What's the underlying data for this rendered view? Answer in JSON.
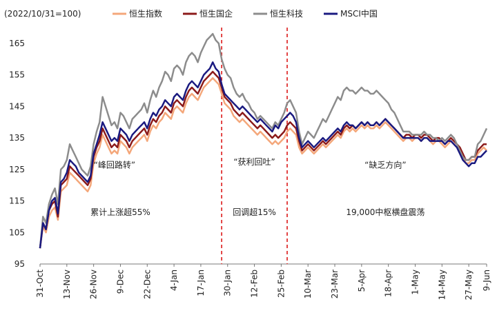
{
  "chart_data": {
    "type": "line",
    "unit_label": "(2022/10/31=100)",
    "ylim": [
      95,
      170
    ],
    "yticks": [
      95,
      105,
      115,
      125,
      135,
      145,
      155,
      165
    ],
    "xlim": [
      0,
      150
    ],
    "x_tick_labels": [
      "31-Oct",
      "13-Nov",
      "26-Nov",
      "9-Dec",
      "22-Dec",
      "4-Jan",
      "17-Jan",
      "30-Jan",
      "12-Feb",
      "25-Feb",
      "10-Mar",
      "23-Mar",
      "5-Apr",
      "18-Apr",
      "1-May",
      "14-May",
      "27-May",
      "9-Jun"
    ],
    "x_tick_pos": [
      0,
      9,
      18,
      27,
      36,
      45,
      54,
      63,
      72,
      81,
      90,
      99,
      108,
      117,
      126,
      135,
      144,
      150
    ],
    "vlines": [
      {
        "x": 61,
        "color": "#E03030"
      },
      {
        "x": 83,
        "color": "#E03030"
      }
    ],
    "annotations": [
      {
        "text": "“峰回路转”",
        "x": 25,
        "y": 125.5
      },
      {
        "text": "累计上涨超55%",
        "x": 27,
        "y": 110.5
      },
      {
        "text": "“获利回吐”",
        "x": 72,
        "y": 126.5
      },
      {
        "text": "回调超15%",
        "x": 72,
        "y": 110.5
      },
      {
        "text": "“缺乏方向”",
        "x": 116,
        "y": 125.5
      },
      {
        "text": "19,000中枢横盘震荡",
        "x": 116,
        "y": 110.5
      }
    ],
    "series": [
      {
        "name": "恒生指数",
        "color": "#F4A77A",
        "width": 2.5,
        "x": [
          0,
          1,
          2,
          3,
          4,
          5,
          6,
          7,
          8,
          9,
          10,
          11,
          12,
          13,
          14,
          15,
          16,
          17,
          18,
          19,
          20,
          21,
          22,
          23,
          24,
          25,
          26,
          27,
          28,
          29,
          30,
          31,
          32,
          33,
          34,
          35,
          36,
          37,
          38,
          39,
          40,
          41,
          42,
          43,
          44,
          45,
          46,
          47,
          48,
          49,
          50,
          51,
          52,
          53,
          54,
          55,
          56,
          57,
          58,
          59,
          60,
          61,
          62,
          63,
          64,
          65,
          66,
          67,
          68,
          69,
          70,
          71,
          72,
          73,
          74,
          75,
          76,
          77,
          78,
          79,
          80,
          81,
          82,
          83,
          84,
          85,
          86,
          87,
          88,
          89,
          90,
          91,
          92,
          93,
          94,
          95,
          96,
          97,
          98,
          99,
          100,
          101,
          102,
          103,
          104,
          105,
          106,
          107,
          108,
          109,
          110,
          111,
          112,
          113,
          114,
          115,
          116,
          117,
          118,
          119,
          120,
          121,
          122,
          123,
          124,
          125,
          126,
          127,
          128,
          129,
          130,
          131,
          132,
          133,
          134,
          135,
          136,
          137,
          138,
          139,
          140,
          141,
          142,
          143,
          144,
          145,
          146,
          147,
          148,
          149,
          150
        ],
        "y": [
          100,
          107,
          105,
          110,
          112,
          113,
          109,
          118,
          119,
          120,
          124,
          123,
          122,
          121,
          120,
          119,
          118,
          120,
          127,
          130,
          132,
          136,
          134,
          132,
          130,
          131,
          130,
          134,
          133,
          132,
          130,
          132,
          133,
          134,
          135,
          136,
          134,
          137,
          139,
          138,
          140,
          141,
          143,
          142,
          141,
          144,
          145,
          144,
          143,
          146,
          148,
          149,
          148,
          147,
          149,
          151,
          152,
          153,
          154,
          153,
          152,
          149,
          146,
          145,
          144,
          142,
          141,
          140,
          141,
          140,
          139,
          138,
          137,
          136,
          137,
          136,
          135,
          134,
          133,
          134,
          133,
          134,
          135,
          137,
          138,
          137,
          136,
          132,
          130,
          131,
          132,
          131,
          130,
          131,
          132,
          133,
          132,
          133,
          134,
          135,
          136,
          135,
          137,
          138,
          137,
          138,
          137,
          138,
          139,
          138,
          139,
          138,
          138,
          139,
          138,
          139,
          140,
          139,
          138,
          137,
          136,
          135,
          134,
          135,
          135,
          134,
          135,
          135,
          134,
          135,
          135,
          134,
          133,
          134,
          134,
          133,
          132,
          133,
          134,
          133,
          132,
          131,
          129,
          127,
          127,
          128,
          128,
          130,
          131,
          132,
          131
        ]
      },
      {
        "name": "恒生国企",
        "color": "#8B1A1A",
        "width": 2.5,
        "x": [
          0,
          1,
          2,
          3,
          4,
          5,
          6,
          7,
          8,
          9,
          10,
          11,
          12,
          13,
          14,
          15,
          16,
          17,
          18,
          19,
          20,
          21,
          22,
          23,
          24,
          25,
          26,
          27,
          28,
          29,
          30,
          31,
          32,
          33,
          34,
          35,
          36,
          37,
          38,
          39,
          40,
          41,
          42,
          43,
          44,
          45,
          46,
          47,
          48,
          49,
          50,
          51,
          52,
          53,
          54,
          55,
          56,
          57,
          58,
          59,
          60,
          61,
          62,
          63,
          64,
          65,
          66,
          67,
          68,
          69,
          70,
          71,
          72,
          73,
          74,
          75,
          76,
          77,
          78,
          79,
          80,
          81,
          82,
          83,
          84,
          85,
          86,
          87,
          88,
          89,
          90,
          91,
          92,
          93,
          94,
          95,
          96,
          97,
          98,
          99,
          100,
          101,
          102,
          103,
          104,
          105,
          106,
          107,
          108,
          109,
          110,
          111,
          112,
          113,
          114,
          115,
          116,
          117,
          118,
          119,
          120,
          121,
          122,
          123,
          124,
          125,
          126,
          127,
          128,
          129,
          130,
          131,
          132,
          133,
          134,
          135,
          136,
          137,
          138,
          139,
          140,
          141,
          142,
          143,
          144,
          145,
          146,
          147,
          148,
          149,
          150
        ],
        "y": [
          100,
          108,
          106,
          112,
          114,
          115,
          110,
          120,
          121,
          122,
          126,
          125,
          124,
          123,
          122,
          121,
          120,
          122,
          129,
          132,
          134,
          138,
          136,
          134,
          132,
          133,
          132,
          136,
          135,
          134,
          132,
          134,
          135,
          136,
          137,
          138,
          136,
          139,
          141,
          140,
          142,
          143,
          145,
          144,
          143,
          146,
          147,
          146,
          145,
          148,
          150,
          151,
          150,
          149,
          151,
          153,
          154,
          155,
          156,
          155,
          154,
          151,
          148,
          147,
          146,
          144,
          143,
          142,
          143,
          142,
          141,
          140,
          139,
          138,
          139,
          138,
          137,
          136,
          135,
          136,
          135,
          136,
          137,
          139,
          140,
          139,
          138,
          134,
          131,
          132,
          133,
          132,
          131,
          132,
          133,
          134,
          133,
          134,
          135,
          136,
          137,
          136,
          138,
          139,
          138,
          139,
          138,
          139,
          140,
          139,
          140,
          139,
          139,
          140,
          139,
          140,
          141,
          140,
          139,
          138,
          137,
          136,
          135,
          136,
          136,
          135,
          136,
          136,
          135,
          136,
          136,
          135,
          134,
          135,
          135,
          134,
          133,
          134,
          135,
          134,
          133,
          132,
          130,
          128,
          128,
          129,
          129,
          131,
          132,
          133,
          133
        ]
      },
      {
        "name": "恒生科技",
        "color": "#8C8C8C",
        "width": 2.5,
        "x": [
          0,
          1,
          2,
          3,
          4,
          5,
          6,
          7,
          8,
          9,
          10,
          11,
          12,
          13,
          14,
          15,
          16,
          17,
          18,
          19,
          20,
          21,
          22,
          23,
          24,
          25,
          26,
          27,
          28,
          29,
          30,
          31,
          32,
          33,
          34,
          35,
          36,
          37,
          38,
          39,
          40,
          41,
          42,
          43,
          44,
          45,
          46,
          47,
          48,
          49,
          50,
          51,
          52,
          53,
          54,
          55,
          56,
          57,
          58,
          59,
          60,
          61,
          62,
          63,
          64,
          65,
          66,
          67,
          68,
          69,
          70,
          71,
          72,
          73,
          74,
          75,
          76,
          77,
          78,
          79,
          80,
          81,
          82,
          83,
          84,
          85,
          86,
          87,
          88,
          89,
          90,
          91,
          92,
          93,
          94,
          95,
          96,
          97,
          98,
          99,
          100,
          101,
          102,
          103,
          104,
          105,
          106,
          107,
          108,
          109,
          110,
          111,
          112,
          113,
          114,
          115,
          116,
          117,
          118,
          119,
          120,
          121,
          122,
          123,
          124,
          125,
          126,
          127,
          128,
          129,
          130,
          131,
          132,
          133,
          134,
          135,
          136,
          137,
          138,
          139,
          140,
          141,
          142,
          143,
          144,
          145,
          146,
          147,
          148,
          149,
          150
        ],
        "y": [
          100,
          110,
          108,
          114,
          117,
          119,
          114,
          125,
          126,
          128,
          133,
          131,
          129,
          127,
          125,
          124,
          123,
          126,
          133,
          137,
          140,
          148,
          145,
          142,
          139,
          140,
          138,
          143,
          142,
          140,
          138,
          141,
          142,
          143,
          144,
          146,
          143,
          147,
          150,
          148,
          151,
          153,
          156,
          155,
          153,
          157,
          158,
          157,
          155,
          159,
          161,
          162,
          161,
          159,
          162,
          164,
          166,
          167,
          168,
          166,
          165,
          160,
          157,
          155,
          154,
          151,
          149,
          148,
          149,
          147,
          146,
          144,
          143,
          141,
          142,
          141,
          140,
          139,
          138,
          140,
          139,
          141,
          143,
          146,
          147,
          145,
          143,
          137,
          133,
          135,
          137,
          136,
          135,
          137,
          139,
          141,
          140,
          142,
          144,
          146,
          148,
          147,
          150,
          151,
          150,
          150,
          149,
          150,
          151,
          150,
          150,
          149,
          149,
          150,
          149,
          148,
          147,
          146,
          144,
          143,
          141,
          139,
          137,
          137,
          137,
          136,
          136,
          136,
          136,
          137,
          136,
          136,
          135,
          135,
          134,
          135,
          134,
          135,
          136,
          135,
          133,
          131,
          129,
          128,
          128,
          129,
          129,
          133,
          134,
          136,
          138
        ]
      },
      {
        "name": "MSCI中国",
        "color": "#1A1A80",
        "width": 2.5,
        "x": [
          0,
          1,
          2,
          3,
          4,
          5,
          6,
          7,
          8,
          9,
          10,
          11,
          12,
          13,
          14,
          15,
          16,
          17,
          18,
          19,
          20,
          21,
          22,
          23,
          24,
          25,
          26,
          27,
          28,
          29,
          30,
          31,
          32,
          33,
          34,
          35,
          36,
          37,
          38,
          39,
          40,
          41,
          42,
          43,
          44,
          45,
          46,
          47,
          48,
          49,
          50,
          51,
          52,
          53,
          54,
          55,
          56,
          57,
          58,
          59,
          60,
          61,
          62,
          63,
          64,
          65,
          66,
          67,
          68,
          69,
          70,
          71,
          72,
          73,
          74,
          75,
          76,
          77,
          78,
          79,
          80,
          81,
          82,
          83,
          84,
          85,
          86,
          87,
          88,
          89,
          90,
          91,
          92,
          93,
          94,
          95,
          96,
          97,
          98,
          99,
          100,
          101,
          102,
          103,
          104,
          105,
          106,
          107,
          108,
          109,
          110,
          111,
          112,
          113,
          114,
          115,
          116,
          117,
          118,
          119,
          120,
          121,
          122,
          123,
          124,
          125,
          126,
          127,
          128,
          129,
          130,
          131,
          132,
          133,
          134,
          135,
          136,
          137,
          138,
          139,
          140,
          141,
          142,
          143,
          144,
          145,
          146,
          147,
          148,
          149,
          150
        ],
        "y": [
          100,
          108,
          106,
          112,
          115,
          116,
          111,
          121,
          122,
          124,
          128,
          127,
          126,
          124,
          123,
          122,
          121,
          123,
          130,
          133,
          136,
          140,
          138,
          136,
          134,
          135,
          134,
          138,
          137,
          136,
          134,
          136,
          137,
          138,
          139,
          140,
          138,
          141,
          143,
          142,
          144,
          145,
          147,
          146,
          145,
          148,
          149,
          148,
          147,
          150,
          152,
          153,
          152,
          151,
          153,
          155,
          156,
          157,
          159,
          157,
          156,
          152,
          149,
          148,
          147,
          146,
          145,
          144,
          145,
          144,
          143,
          142,
          141,
          140,
          141,
          140,
          139,
          138,
          137,
          139,
          138,
          140,
          141,
          142,
          143,
          142,
          140,
          135,
          132,
          133,
          134,
          133,
          132,
          133,
          134,
          135,
          134,
          135,
          136,
          137,
          138,
          137,
          139,
          140,
          139,
          139,
          138,
          139,
          140,
          139,
          140,
          139,
          139,
          140,
          139,
          140,
          141,
          140,
          139,
          138,
          137,
          136,
          135,
          135,
          135,
          135,
          135,
          135,
          134,
          135,
          135,
          134,
          134,
          134,
          134,
          134,
          133,
          134,
          134,
          133,
          132,
          130,
          128,
          127,
          126,
          127,
          127,
          129,
          129,
          130,
          131
        ]
      }
    ]
  }
}
